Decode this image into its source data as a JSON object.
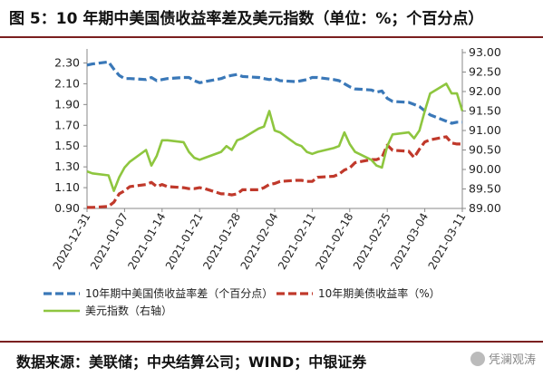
{
  "title": "图 5：10 年期中美国债收益率差及美元指数（单位：%；个百分点）",
  "source": "数据来源：美联储；中央结算公司；WIND；中银证券",
  "watermark": "凭澜观涛",
  "chart_data": {
    "type": "line",
    "left_axis": {
      "ticks": [
        "0.90",
        "1.10",
        "1.30",
        "1.50",
        "1.70",
        "1.90",
        "2.10",
        "2.30"
      ],
      "ylim": [
        0.9,
        2.4
      ]
    },
    "right_axis": {
      "ticks": [
        "89.00",
        "89.50",
        "90.00",
        "90.50",
        "91.00",
        "91.50",
        "92.00",
        "92.50",
        "93.00"
      ],
      "ylim": [
        89.0,
        93.0
      ]
    },
    "x_ticks": [
      "2020-12-31",
      "2021-01-07",
      "2021-01-14",
      "2021-01-21",
      "2021-01-28",
      "2021-02-04",
      "2021-02-11",
      "2021-02-18",
      "2021-02-25",
      "2021-03-04",
      "2021-03-11"
    ],
    "x": [
      "2020-12-31",
      "2021-01-01",
      "2021-01-04",
      "2021-01-05",
      "2021-01-06",
      "2021-01-07",
      "2021-01-08",
      "2021-01-11",
      "2021-01-12",
      "2021-01-13",
      "2021-01-14",
      "2021-01-15",
      "2021-01-18",
      "2021-01-19",
      "2021-01-20",
      "2021-01-21",
      "2021-01-22",
      "2021-01-25",
      "2021-01-26",
      "2021-01-27",
      "2021-01-28",
      "2021-01-29",
      "2021-02-01",
      "2021-02-02",
      "2021-02-03",
      "2021-02-04",
      "2021-02-05",
      "2021-02-08",
      "2021-02-09",
      "2021-02-10",
      "2021-02-11",
      "2021-02-12",
      "2021-02-15",
      "2021-02-16",
      "2021-02-17",
      "2021-02-18",
      "2021-02-19",
      "2021-02-22",
      "2021-02-23",
      "2021-02-24",
      "2021-02-25",
      "2021-02-26",
      "2021-03-01",
      "2021-03-02",
      "2021-03-03",
      "2021-03-04",
      "2021-03-05",
      "2021-03-08",
      "2021-03-09",
      "2021-03-10",
      "2021-03-11"
    ],
    "series": [
      {
        "name": "10年期中美国债收益率差（个百分点）",
        "axis": "left",
        "color": "#3a78b8",
        "dash": true,
        "values": [
          2.28,
          2.29,
          2.31,
          2.24,
          2.18,
          2.15,
          2.15,
          2.14,
          2.16,
          2.13,
          2.14,
          2.15,
          2.16,
          2.16,
          2.13,
          2.11,
          2.12,
          2.15,
          2.17,
          2.18,
          2.19,
          2.17,
          2.16,
          2.15,
          2.14,
          2.15,
          2.13,
          2.12,
          2.13,
          2.14,
          2.16,
          2.16,
          2.14,
          2.13,
          2.1,
          2.07,
          2.05,
          2.04,
          2.02,
          2.03,
          1.96,
          1.93,
          1.92,
          1.9,
          1.88,
          1.84,
          1.8,
          1.74,
          1.72,
          1.73,
          1.73
        ]
      },
      {
        "name": "10年期美债收益率（%）",
        "axis": "left",
        "color": "#c0392b",
        "dash": true,
        "values": [
          0.91,
          0.91,
          0.92,
          0.96,
          1.04,
          1.07,
          1.11,
          1.13,
          1.15,
          1.11,
          1.13,
          1.11,
          1.1,
          1.09,
          1.09,
          1.1,
          1.09,
          1.04,
          1.04,
          1.03,
          1.04,
          1.08,
          1.08,
          1.1,
          1.13,
          1.14,
          1.16,
          1.17,
          1.17,
          1.16,
          1.16,
          1.2,
          1.21,
          1.23,
          1.27,
          1.29,
          1.34,
          1.37,
          1.37,
          1.39,
          1.51,
          1.46,
          1.45,
          1.39,
          1.47,
          1.54,
          1.56,
          1.59,
          1.53,
          1.52,
          1.52
        ]
      },
      {
        "name": "美元指数（右轴）",
        "axis": "right",
        "color": "#8ec63f",
        "dash": false,
        "values": [
          89.95,
          89.9,
          89.85,
          89.45,
          89.8,
          90.05,
          90.2,
          90.5,
          90.1,
          90.35,
          90.75,
          90.75,
          90.7,
          90.45,
          90.3,
          90.25,
          90.3,
          90.45,
          90.6,
          90.5,
          90.75,
          90.8,
          91.05,
          91.1,
          91.5,
          91.0,
          90.95,
          90.65,
          90.6,
          90.45,
          90.4,
          90.45,
          90.55,
          90.6,
          90.95,
          90.65,
          90.45,
          90.25,
          90.1,
          90.05,
          90.6,
          90.9,
          90.95,
          90.8,
          91.0,
          91.5,
          91.95,
          92.2,
          91.95,
          91.95,
          91.5
        ]
      }
    ]
  }
}
